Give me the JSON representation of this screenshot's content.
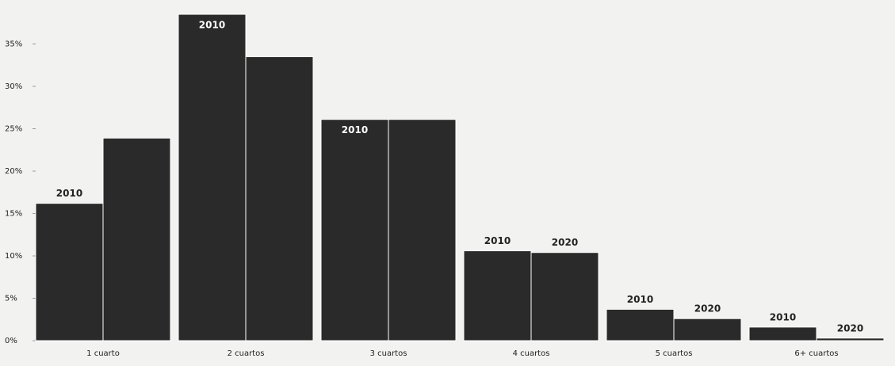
{
  "chart_data": {
    "type": "bar",
    "categories": [
      "1 cuarto",
      "2 cuartos",
      "3 cuartos",
      "4 cuartos",
      "5 cuartos",
      "6+ cuartos"
    ],
    "series": [
      {
        "name": "2010",
        "color": "#2a2a2a",
        "values": [
          16.2,
          38.5,
          26.1,
          10.6,
          3.7,
          1.6
        ]
      },
      {
        "name": "2020",
        "color": "#2a2a2a",
        "values": [
          23.9,
          33.5,
          26.1,
          10.4,
          2.6,
          0.3
        ]
      }
    ],
    "annotations": [
      {
        "text": "2010",
        "series": 0,
        "category": 0
      },
      {
        "text": "2010",
        "series": 0,
        "category": 1
      },
      {
        "text": "2010",
        "series": 0,
        "category": 2
      },
      {
        "text": "2010",
        "series": 0,
        "category": 3
      },
      {
        "text": "2020",
        "series": 1,
        "category": 3
      },
      {
        "text": "2010",
        "series": 0,
        "category": 4
      },
      {
        "text": "2020",
        "series": 1,
        "category": 4
      },
      {
        "text": "2010",
        "series": 0,
        "category": 5
      },
      {
        "text": "2020",
        "series": 1,
        "category": 5
      }
    ],
    "ylim": [
      0,
      40
    ],
    "yticks": [
      {
        "value": 0,
        "label": "0%"
      },
      {
        "value": 5,
        "label": "5%"
      },
      {
        "value": 10,
        "label": "10%"
      },
      {
        "value": 15,
        "label": "15%"
      },
      {
        "value": 20,
        "label": "20%"
      },
      {
        "value": 25,
        "label": "25%"
      },
      {
        "value": 30,
        "label": "30%"
      },
      {
        "value": 35,
        "label": "35%"
      }
    ],
    "grid": false
  }
}
